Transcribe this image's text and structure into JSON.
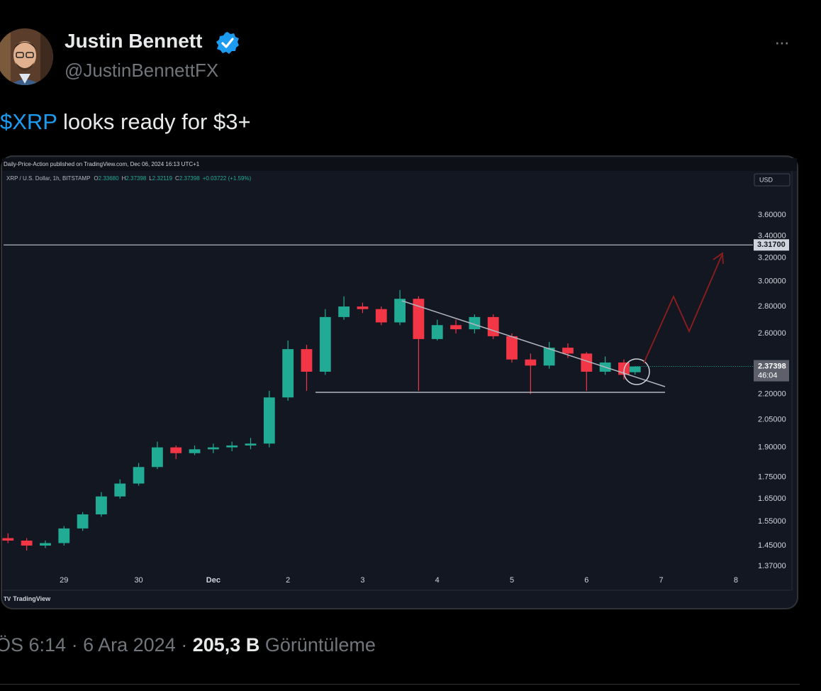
{
  "tweet": {
    "name": "Justin Bennett",
    "handle": "@JustinBennettFX",
    "more": "···",
    "text": {
      "cashtag": "$XRP",
      "rest": " looks ready for $3+"
    },
    "time": "ÖS 6:14",
    "separator": "·",
    "date": "6 Ara 2024",
    "views_count": "205,3 B",
    "views_label": "Görüntüleme"
  },
  "chart_data": {
    "type": "candlestick",
    "title": "Daily-Price-Action published on TradingView.com, Dec 06, 2024 16:13 UTC+1",
    "subtitle": "XRP / U.S. Dollar, 1h, BITSTAMP",
    "ohlc_keys": [
      "O",
      "H",
      "L",
      "C"
    ],
    "ohlc_labels": [
      "2.33680",
      "2.37398",
      "2.32119",
      "2.37398"
    ],
    "change": "+0.03722 (+1.59%)",
    "currency": "USD",
    "countdown": "46:04",
    "brand": "TradingView",
    "log_scale": true,
    "grid": false,
    "up_color": "#22ab94",
    "down_color": "#f23645",
    "x": [
      -0.75,
      -0.5,
      -0.25,
      0,
      0.25,
      0.5,
      0.75,
      1,
      1.25,
      1.5,
      1.75,
      2,
      2.25,
      2.5,
      2.75,
      3,
      3.25,
      3.5,
      3.75,
      4,
      4.25,
      4.5,
      4.75,
      5,
      5.25,
      5.5,
      5.75,
      6,
      6.25,
      6.5,
      6.75,
      7,
      7.25,
      7.5,
      7.65
    ],
    "open": [
      1.48,
      1.47,
      1.45,
      1.46,
      1.52,
      1.58,
      1.66,
      1.72,
      1.8,
      1.9,
      1.87,
      1.89,
      1.9,
      1.91,
      1.92,
      2.18,
      2.49,
      2.34,
      2.72,
      2.8,
      2.78,
      2.68,
      2.86,
      2.56,
      2.66,
      2.63,
      2.72,
      2.58,
      2.42,
      2.38,
      2.5,
      2.46,
      2.34,
      2.4,
      2.3368
    ],
    "high": [
      1.5,
      1.48,
      1.47,
      1.53,
      1.59,
      1.68,
      1.74,
      1.82,
      1.93,
      1.91,
      1.91,
      1.92,
      1.93,
      1.95,
      2.22,
      2.55,
      2.52,
      2.78,
      2.88,
      2.83,
      2.8,
      2.93,
      2.88,
      2.7,
      2.7,
      2.74,
      2.74,
      2.6,
      2.46,
      2.54,
      2.53,
      2.47,
      2.44,
      2.42,
      2.37398
    ],
    "low": [
      1.46,
      1.43,
      1.44,
      1.45,
      1.51,
      1.57,
      1.65,
      1.71,
      1.79,
      1.84,
      1.86,
      1.87,
      1.88,
      1.89,
      1.9,
      2.16,
      2.22,
      2.32,
      2.7,
      2.75,
      2.66,
      2.66,
      2.22,
      2.55,
      2.6,
      2.6,
      2.56,
      2.4,
      2.2,
      2.36,
      2.43,
      2.22,
      2.32,
      2.29,
      2.32119
    ],
    "close": [
      1.47,
      1.45,
      1.46,
      1.52,
      1.58,
      1.66,
      1.72,
      1.8,
      1.9,
      1.87,
      1.89,
      1.9,
      1.91,
      1.92,
      2.18,
      2.49,
      2.34,
      2.72,
      2.8,
      2.78,
      2.68,
      2.86,
      2.56,
      2.66,
      2.63,
      2.72,
      2.58,
      2.42,
      2.38,
      2.5,
      2.46,
      2.34,
      2.4,
      2.32,
      2.37398
    ],
    "xlim": [
      -0.81,
      9.21
    ],
    "xticks": [
      {
        "value": 0,
        "label": "29"
      },
      {
        "value": 1,
        "label": "30"
      },
      {
        "value": 2,
        "label": "Dec"
      },
      {
        "value": 3,
        "label": "2"
      },
      {
        "value": 4,
        "label": "3"
      },
      {
        "value": 5,
        "label": "4"
      },
      {
        "value": 6,
        "label": "5"
      },
      {
        "value": 7,
        "label": "6"
      },
      {
        "value": 8,
        "label": "7"
      },
      {
        "value": 9,
        "label": "8"
      }
    ],
    "ylim": [
      1.349,
      4.058
    ],
    "yticks": [
      {
        "value": 3.6,
        "label": "3.60000"
      },
      {
        "value": 3.4,
        "label": "3.40000"
      },
      {
        "value": 3.2,
        "label": "3.20000"
      },
      {
        "value": 3,
        "label": "3.00000"
      },
      {
        "value": 2.8,
        "label": "2.80000"
      },
      {
        "value": 2.6,
        "label": "2.60000"
      },
      {
        "value": 2.2,
        "label": "2.20000"
      },
      {
        "value": 2.05,
        "label": "2.05000"
      },
      {
        "value": 1.9,
        "label": "1.90000"
      },
      {
        "value": 1.75,
        "label": "1.75000"
      },
      {
        "value": 1.65,
        "label": "1.65000"
      },
      {
        "value": 1.55,
        "label": "1.55000"
      },
      {
        "value": 1.45,
        "label": "1.45000"
      },
      {
        "value": 1.37,
        "label": "1.37000"
      }
    ],
    "levels": [
      {
        "value": 3.317,
        "label": "3.31700"
      }
    ]
  }
}
